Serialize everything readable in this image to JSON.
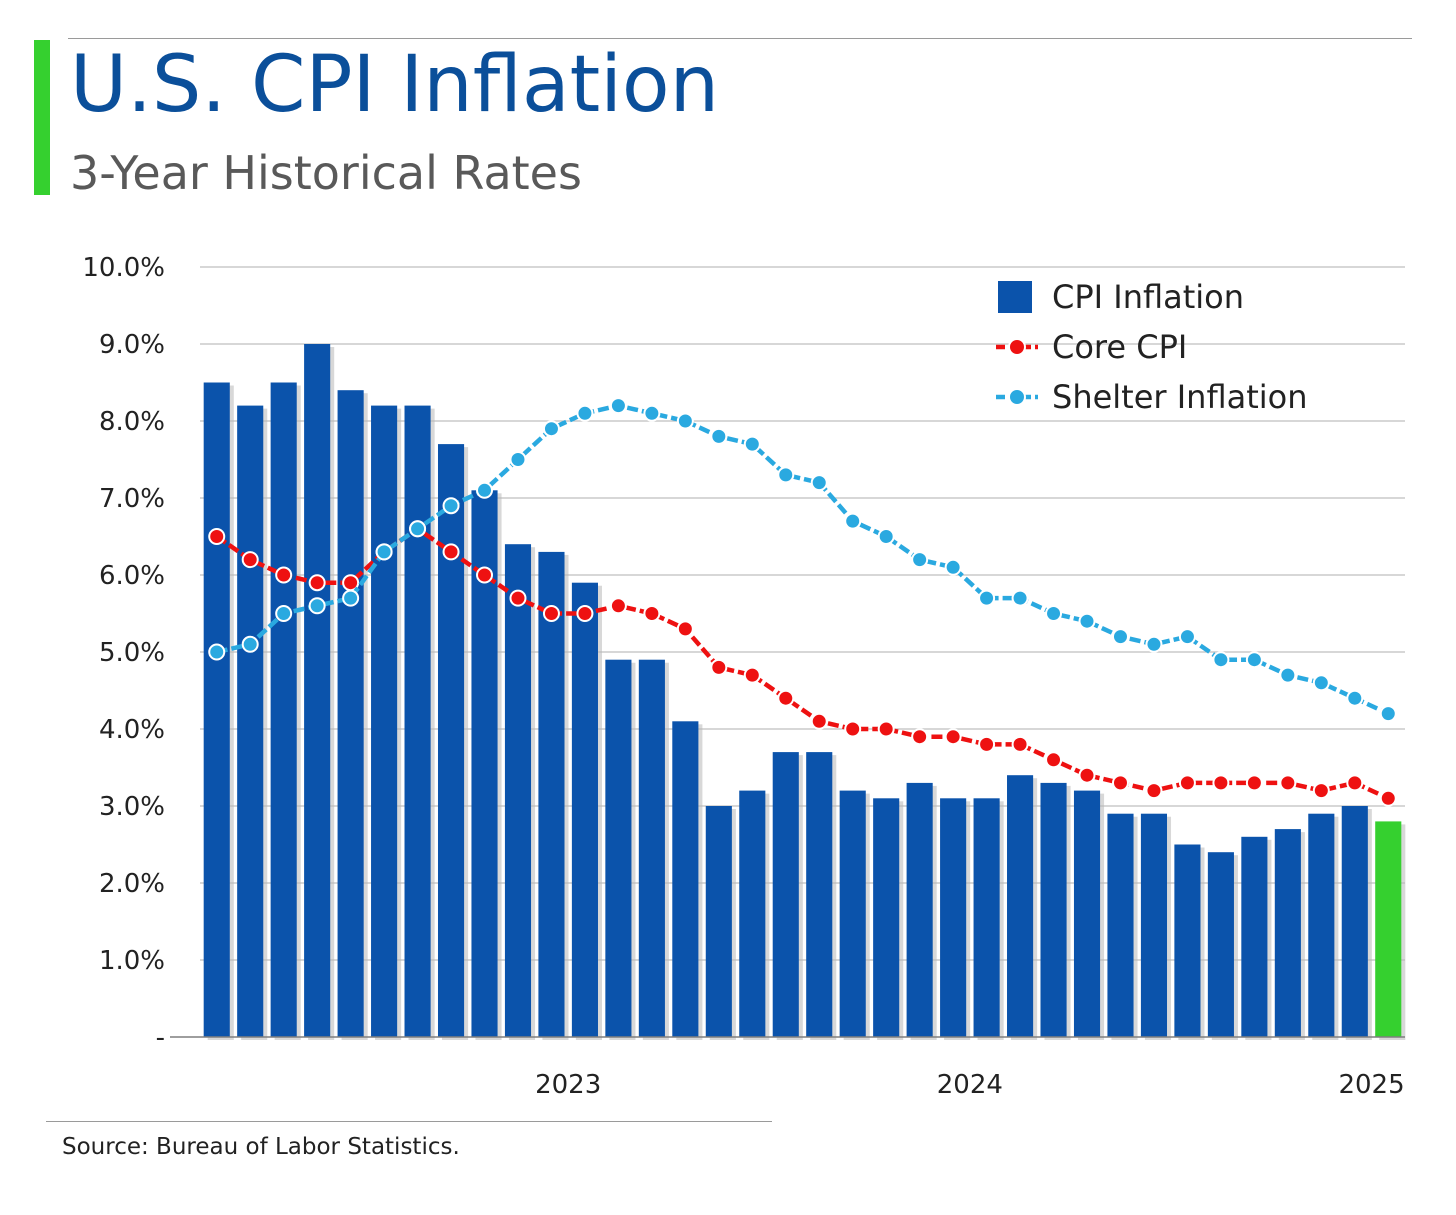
{
  "header": {
    "title": "U.S. CPI Inflation",
    "subtitle": "3-Year Historical Rates"
  },
  "footer": {
    "source": "Source: Bureau of Labor Statistics."
  },
  "colors": {
    "bar": "#0b53ab",
    "bar_highlight": "#35d02f",
    "core": "#ee1111",
    "shelter": "#2aa9e0",
    "accent": "#35d02f",
    "title": "#0b4f9a",
    "grid": "#bfbfbf"
  },
  "chart_data": {
    "type": "bar",
    "title": "U.S. CPI Inflation",
    "subtitle": "3-Year Historical Rates",
    "y_ticks": [
      {
        "value": 0,
        "label": "-"
      },
      {
        "value": 1,
        "label": "1.0%"
      },
      {
        "value": 2,
        "label": "2.0%"
      },
      {
        "value": 3,
        "label": "3.0%"
      },
      {
        "value": 4,
        "label": "4.0%"
      },
      {
        "value": 5,
        "label": "5.0%"
      },
      {
        "value": 6,
        "label": "6.0%"
      },
      {
        "value": 7,
        "label": "7.0%"
      },
      {
        "value": 8,
        "label": "8.0%"
      },
      {
        "value": 9,
        "label": "9.0%"
      },
      {
        "value": 10,
        "label": "10.0%"
      }
    ],
    "ylim": [
      0,
      10
    ],
    "x_ticks": [
      {
        "index": 11,
        "label": "2023"
      },
      {
        "index": 23,
        "label": "2024"
      },
      {
        "index": 35,
        "label": "2025"
      }
    ],
    "grid": true,
    "legend_position": "top-right",
    "highlight_last_bar": true,
    "series": [
      {
        "name": "CPI Inflation",
        "type": "bar",
        "values": [
          8.5,
          8.2,
          8.5,
          9.0,
          8.4,
          8.2,
          8.2,
          7.7,
          7.1,
          6.4,
          6.3,
          5.9,
          4.9,
          4.9,
          4.1,
          3.0,
          3.2,
          3.7,
          3.7,
          3.2,
          3.1,
          3.3,
          3.1,
          3.1,
          3.4,
          3.3,
          3.2,
          2.9,
          2.9,
          2.5,
          2.4,
          2.6,
          2.7,
          2.9,
          3.0,
          2.8
        ]
      },
      {
        "name": "Core CPI",
        "type": "line",
        "values": [
          6.5,
          6.2,
          6.0,
          5.9,
          5.9,
          6.3,
          6.6,
          6.3,
          6.0,
          5.7,
          5.5,
          5.5,
          5.6,
          5.5,
          5.3,
          4.8,
          4.7,
          4.4,
          4.1,
          4.0,
          4.0,
          3.9,
          3.9,
          3.8,
          3.8,
          3.6,
          3.4,
          3.3,
          3.2,
          3.3,
          3.3,
          3.3,
          3.3,
          3.2,
          3.3,
          3.1
        ]
      },
      {
        "name": "Shelter Inflation",
        "type": "line",
        "values": [
          5.0,
          5.1,
          5.5,
          5.6,
          5.7,
          6.3,
          6.6,
          6.9,
          7.1,
          7.5,
          7.9,
          8.1,
          8.2,
          8.1,
          8.0,
          7.8,
          7.7,
          7.3,
          7.2,
          6.7,
          6.5,
          6.2,
          6.1,
          5.7,
          5.7,
          5.5,
          5.4,
          5.2,
          5.1,
          5.2,
          4.9,
          4.9,
          4.7,
          4.6,
          4.4,
          4.2
        ]
      }
    ]
  }
}
